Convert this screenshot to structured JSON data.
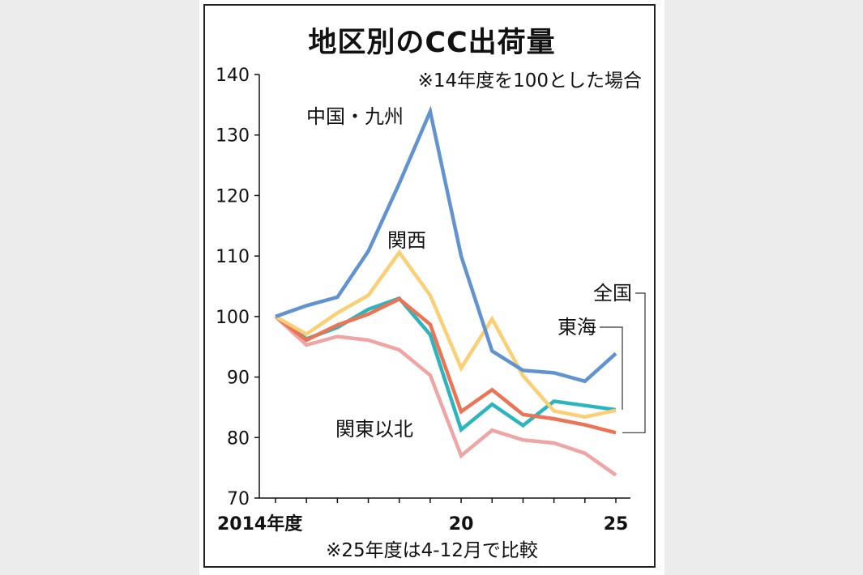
{
  "chart_data": {
    "type": "line",
    "title": "地区別のCC出荷量",
    "subtitle": "※14年度を100とした場合",
    "note": "※25年度は4-12月で比較",
    "ylim": [
      70,
      140
    ],
    "yticks": [
      70,
      80,
      90,
      100,
      110,
      120,
      130,
      140
    ],
    "xlim": [
      2014,
      2025
    ],
    "xtick_labels": [
      {
        "x": 2014,
        "label": "2014年度"
      },
      {
        "x": 2020,
        "label": "20"
      },
      {
        "x": 2025,
        "label": "25"
      }
    ],
    "x": [
      2014,
      2015,
      2016,
      2017,
      2018,
      2019,
      2020,
      2021,
      2022,
      2023,
      2024,
      2025
    ],
    "grid": false,
    "series": [
      {
        "name": "関東以北",
        "color": "#f0a5a5",
        "values": [
          100,
          95.3,
          96.7,
          96.1,
          94.5,
          90.3,
          77,
          81.2,
          79.6,
          79.1,
          77.4,
          73.8
        ]
      },
      {
        "name": "東海",
        "color": "#2bb5bd",
        "values": [
          100,
          96.3,
          98.2,
          101.2,
          103,
          97,
          81.3,
          85.5,
          82,
          86,
          85.3,
          84.6
        ]
      },
      {
        "name": "全国",
        "color": "#ec7356",
        "values": [
          100,
          96.1,
          98.6,
          100.4,
          102.9,
          98.7,
          84.3,
          87.9,
          83.8,
          83.1,
          82.1,
          80.8
        ]
      },
      {
        "name": "関西",
        "color": "#fbcf74",
        "values": [
          100,
          97.1,
          100.6,
          103.5,
          110.6,
          103.5,
          91.5,
          99.6,
          90.2,
          84.4,
          83.4,
          84.5
        ]
      },
      {
        "name": "中国・九州",
        "color": "#6093cf",
        "values": [
          100,
          101.8,
          103.2,
          110.8,
          122,
          133.9,
          110,
          94.3,
          91.1,
          90.7,
          89.3,
          93.9
        ]
      }
    ]
  }
}
